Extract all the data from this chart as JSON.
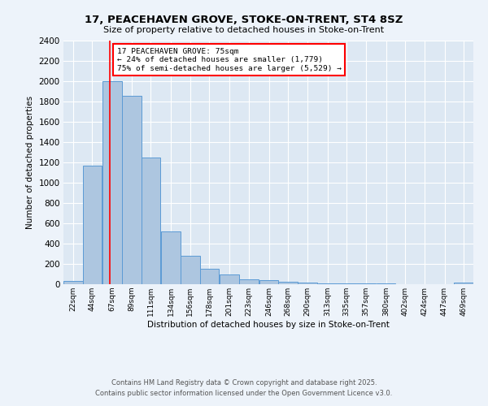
{
  "title_line1": "17, PEACEHAVEN GROVE, STOKE-ON-TRENT, ST4 8SZ",
  "title_line2": "Size of property relative to detached houses in Stoke-on-Trent",
  "xlabel": "Distribution of detached houses by size in Stoke-on-Trent",
  "ylabel": "Number of detached properties",
  "annotation_title": "17 PEACEHAVEN GROVE: 75sqm",
  "annotation_line2": "← 24% of detached houses are smaller (1,779)",
  "annotation_line3": "75% of semi-detached houses are larger (5,529) →",
  "footnote1": "Contains HM Land Registry data © Crown copyright and database right 2025.",
  "footnote2": "Contains public sector information licensed under the Open Government Licence v3.0.",
  "bar_color": "#adc6e0",
  "bar_edge_color": "#5b9bd5",
  "background_color": "#dde8f3",
  "grid_color": "#ffffff",
  "fig_color": "#edf3fa",
  "red_line_x": 75,
  "categories": [
    "22sqm",
    "44sqm",
    "67sqm",
    "89sqm",
    "111sqm",
    "134sqm",
    "156sqm",
    "178sqm",
    "201sqm",
    "223sqm",
    "246sqm",
    "268sqm",
    "290sqm",
    "313sqm",
    "335sqm",
    "357sqm",
    "380sqm",
    "402sqm",
    "424sqm",
    "447sqm",
    "469sqm"
  ],
  "bin_edges": [
    22,
    44,
    67,
    89,
    111,
    134,
    156,
    178,
    201,
    223,
    246,
    268,
    290,
    313,
    335,
    357,
    380,
    402,
    424,
    447,
    469
  ],
  "values": [
    30,
    1170,
    2000,
    1860,
    1245,
    520,
    278,
    155,
    93,
    45,
    42,
    23,
    18,
    10,
    8,
    6,
    5,
    4,
    3,
    3,
    15
  ],
  "ylim": [
    0,
    2400
  ],
  "yticks": [
    0,
    200,
    400,
    600,
    800,
    1000,
    1200,
    1400,
    1600,
    1800,
    2000,
    2200,
    2400
  ]
}
